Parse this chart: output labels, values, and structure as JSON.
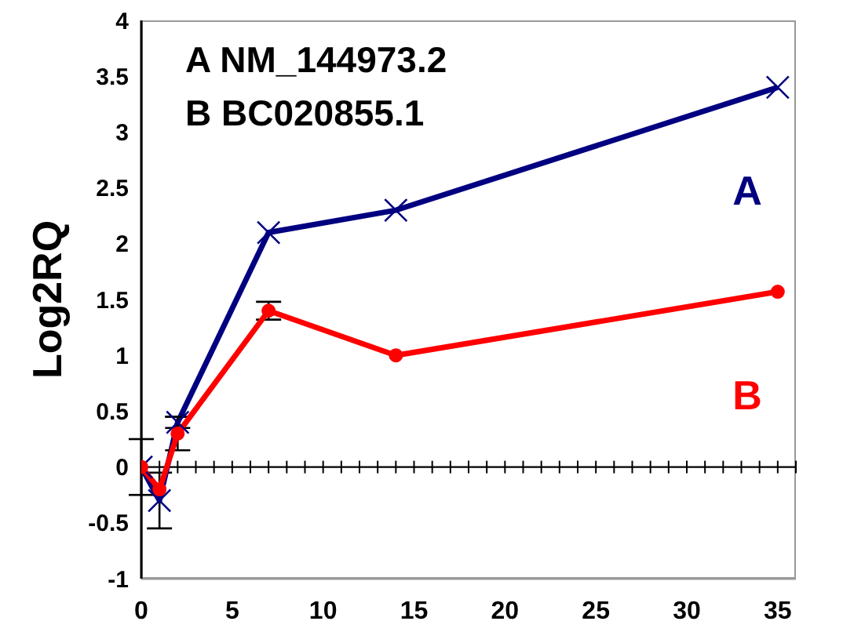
{
  "chart_data": {
    "type": "line",
    "ylabel": "Log2RQ",
    "annotations": [
      "A NM_144973.2",
      "B BC020855.1"
    ],
    "xlim": [
      0,
      36
    ],
    "xticks": [
      0,
      5,
      10,
      15,
      20,
      25,
      30,
      35
    ],
    "ylim": [
      -1,
      4
    ],
    "yticks": [
      -1,
      -0.5,
      0,
      0.5,
      1,
      1.5,
      2,
      2.5,
      3,
      3.5,
      4
    ],
    "x": [
      0,
      1,
      2,
      7,
      14,
      35
    ],
    "series": [
      {
        "name": "A",
        "color": "#000080",
        "marker": "cross",
        "values": [
          0,
          -0.3,
          0.4,
          2.1,
          2.3,
          3.4
        ],
        "errors": [
          0.25,
          0.25,
          0.05,
          null,
          null,
          null
        ]
      },
      {
        "name": "B",
        "color": "#ff0000",
        "marker": "circle",
        "values": [
          0,
          -0.2,
          0.3,
          1.4,
          1.0,
          1.57
        ],
        "errors": [
          null,
          null,
          0.15,
          0.08,
          null,
          null
        ]
      }
    ],
    "legend": false,
    "line_style": "solid"
  }
}
